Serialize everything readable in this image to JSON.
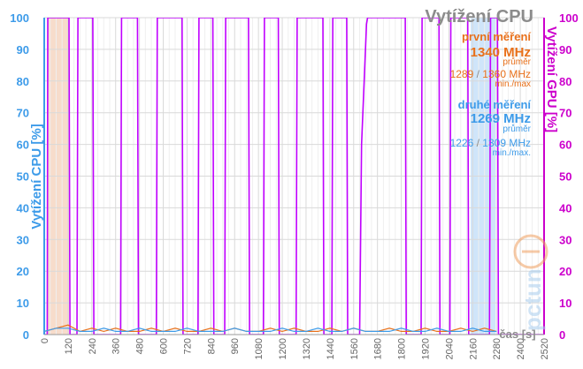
{
  "chart_data": {
    "type": "line",
    "title": "Vytížení CPU",
    "xlabel": "čas [s]",
    "ylabel_left": "Vytížení CPU [%]",
    "ylabel_right": "Vytížení GPU [%]",
    "xlim": [
      0,
      2520
    ],
    "ylim": [
      0,
      100
    ],
    "x_ticks": [
      0,
      120,
      240,
      360,
      480,
      600,
      720,
      840,
      960,
      1080,
      1200,
      1320,
      1440,
      1560,
      1680,
      1800,
      1920,
      2040,
      2160,
      2280,
      2400,
      2520
    ],
    "y_ticks": [
      0,
      10,
      20,
      30,
      40,
      50,
      60,
      70,
      80,
      90,
      100
    ],
    "grid": true,
    "colors": {
      "left_axis": "#3d9be9",
      "right_axis": "#cc00cc",
      "gpu_line": "#c000ff",
      "first_run": "#e8701a",
      "second_run": "#3d9be9",
      "title": "#8c8c8c",
      "highlight_first": "#f7dccb",
      "highlight_second": "#cfe5fa"
    },
    "highlight_first_run": [
      15,
      125
    ],
    "highlight_second_run": [
      2150,
      2275
    ],
    "series": [
      {
        "color": "#c000ff",
        "axis": "right",
        "x": [
          0,
          15,
          18,
          125,
          130,
          165,
          170,
          245,
          250,
          385,
          390,
          470,
          475,
          565,
          570,
          695,
          700,
          775,
          780,
          850,
          855,
          910,
          915,
          1030,
          1035,
          1105,
          1110,
          1180,
          1185,
          1270,
          1275,
          1405,
          1410,
          1450,
          1455,
          1525,
          1530,
          1590,
          1600,
          1625,
          1630,
          1640,
          1650,
          1820,
          1825,
          1900,
          1905,
          1990,
          1995,
          2045,
          2050,
          2135,
          2140,
          2245,
          2250,
          2285,
          2290,
          2520
        ],
        "y": [
          0,
          0,
          100,
          100,
          0,
          0,
          100,
          100,
          0,
          0,
          100,
          100,
          0,
          0,
          100,
          100,
          0,
          0,
          100,
          100,
          0,
          0,
          100,
          100,
          0,
          0,
          100,
          100,
          0,
          0,
          100,
          100,
          0,
          0,
          100,
          100,
          0,
          0,
          60,
          98,
          100,
          100,
          100,
          100,
          0,
          0,
          100,
          100,
          0,
          0,
          100,
          100,
          0,
          0,
          100,
          100,
          0,
          0
        ]
      },
      {
        "color": "#e8701a",
        "axis": "left",
        "x": [
          0,
          60,
          120,
          180,
          240,
          300,
          360,
          420,
          480,
          540,
          600,
          660,
          720,
          780,
          840,
          900,
          960,
          1020,
          1080,
          1140,
          1200,
          1260,
          1320,
          1380,
          1440,
          1500,
          1560,
          1620,
          1680,
          1740,
          1800,
          1860,
          1920,
          1980,
          2040,
          2100,
          2160,
          2220,
          2280
        ],
        "y": [
          1,
          2,
          3,
          1,
          2,
          1,
          2,
          1,
          1,
          2,
          1,
          2,
          1,
          1,
          2,
          1,
          2,
          1,
          1,
          2,
          1,
          2,
          1,
          1,
          2,
          1,
          2,
          1,
          1,
          2,
          1,
          1,
          2,
          1,
          1,
          2,
          1,
          2,
          1
        ]
      },
      {
        "color": "#3d9be9",
        "axis": "left",
        "x": [
          0,
          60,
          120,
          180,
          240,
          300,
          360,
          420,
          480,
          540,
          600,
          660,
          720,
          780,
          840,
          900,
          960,
          1020,
          1080,
          1140,
          1200,
          1260,
          1320,
          1380,
          1440,
          1500,
          1560,
          1620,
          1680,
          1740,
          1800,
          1860,
          1920,
          1980,
          2040,
          2100,
          2160,
          2220,
          2280
        ],
        "y": [
          1,
          2,
          2,
          1,
          1,
          2,
          1,
          1,
          2,
          1,
          1,
          1,
          2,
          1,
          1,
          1,
          2,
          1,
          1,
          1,
          2,
          1,
          1,
          2,
          1,
          1,
          2,
          1,
          1,
          1,
          2,
          1,
          1,
          2,
          1,
          1,
          2,
          1,
          1
        ]
      }
    ],
    "annotations": {
      "first_run_label": "první měření",
      "first_run_avg": "1340 MHz",
      "first_run_avg_label": "průměr",
      "first_run_min": "1289",
      "first_run_max": "1360 MHz",
      "first_run_minmax_label": "min./max",
      "second_run_label": "druhé měření",
      "second_run_avg": "1269 MHz",
      "second_run_avg_label": "průměr",
      "second_run_min": "1226",
      "second_run_max": "1309 MHz",
      "second_run_minmax_label": "min./max.",
      "separator": "/"
    },
    "watermark": "pctuning"
  }
}
